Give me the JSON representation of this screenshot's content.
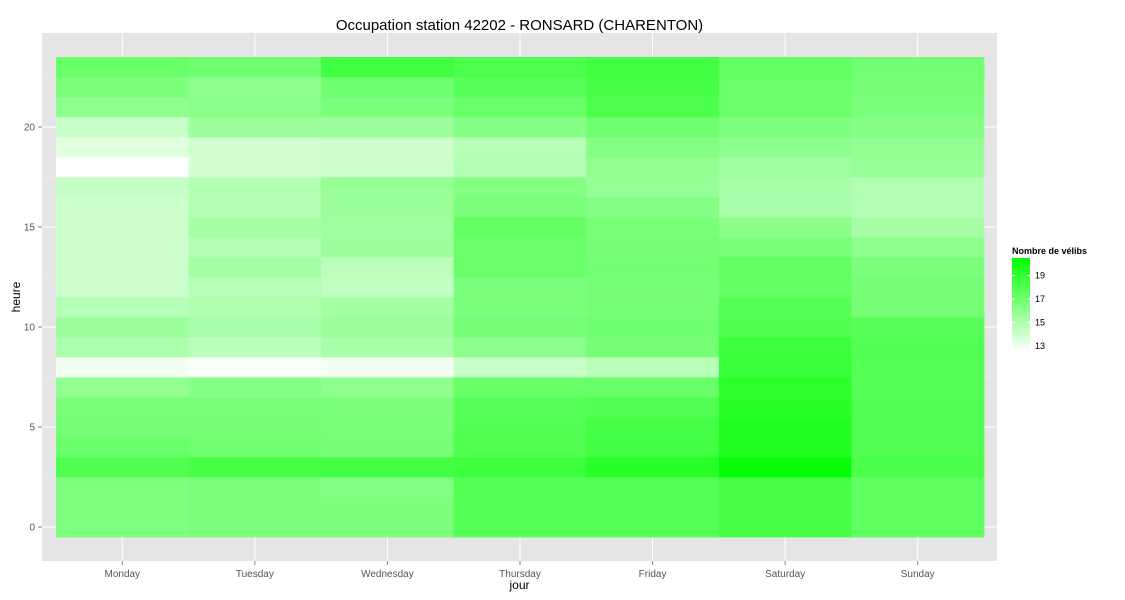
{
  "chart_data": {
    "type": "heatmap",
    "title": "Occupation station 42202 - RONSARD (CHARENTON)",
    "xlabel": "jour",
    "ylabel": "heure",
    "categories": [
      "Monday",
      "Tuesday",
      "Wednesday",
      "Thursday",
      "Friday",
      "Saturday",
      "Sunday"
    ],
    "hours": [
      0,
      1,
      2,
      3,
      4,
      5,
      6,
      7,
      8,
      9,
      10,
      11,
      12,
      13,
      14,
      15,
      16,
      17,
      18,
      19,
      20,
      21,
      22,
      23
    ],
    "y_ticks": [
      0,
      5,
      10,
      15,
      20
    ],
    "ylim": [
      -0.5,
      23.5
    ],
    "grid": true,
    "legend": {
      "title": "Nombre de vélibs",
      "labels": [
        19,
        17,
        15,
        13
      ],
      "min": 12.5,
      "max": 20.5,
      "placement": "right",
      "color_low": "#ffffff",
      "color_high": "#00ff00"
    },
    "colors": {
      "panel_bg": "#e5e5e5",
      "grid": "#ffffff"
    },
    "values": [
      [
        16.5,
        16.6,
        16.6,
        17.8,
        17.8,
        18.3,
        17.5
      ],
      [
        16.5,
        16.6,
        16.6,
        17.8,
        17.8,
        18.3,
        17.5
      ],
      [
        16.5,
        16.6,
        16.4,
        17.8,
        17.8,
        18.3,
        17.5
      ],
      [
        18.0,
        18.3,
        18.4,
        18.6,
        19.2,
        20.3,
        18.1
      ],
      [
        17.1,
        17.0,
        16.8,
        18.0,
        18.4,
        19.5,
        17.9
      ],
      [
        16.8,
        16.8,
        16.7,
        17.9,
        18.3,
        19.5,
        17.9
      ],
      [
        16.7,
        16.7,
        16.6,
        17.7,
        17.9,
        19.2,
        17.9
      ],
      [
        15.9,
        16.3,
        16.0,
        17.2,
        17.2,
        19.1,
        17.8
      ],
      [
        12.9,
        12.7,
        12.9,
        14.2,
        14.7,
        18.7,
        17.8
      ],
      [
        15.1,
        14.6,
        15.2,
        16.1,
        16.8,
        18.6,
        17.9
      ],
      [
        15.6,
        15.2,
        15.6,
        16.8,
        17.0,
        18.0,
        17.7
      ],
      [
        14.8,
        15.0,
        15.4,
        16.6,
        16.8,
        17.8,
        16.8
      ],
      [
        14.1,
        14.8,
        14.5,
        16.6,
        16.8,
        17.3,
        16.8
      ],
      [
        14.1,
        15.4,
        14.6,
        17.1,
        16.9,
        17.4,
        16.6
      ],
      [
        14.1,
        14.9,
        15.6,
        17.1,
        16.8,
        16.7,
        16.1
      ],
      [
        14.1,
        15.3,
        15.5,
        17.4,
        16.7,
        16.2,
        15.3
      ],
      [
        14.1,
        14.9,
        15.6,
        16.6,
        16.4,
        15.2,
        14.9
      ],
      [
        14.3,
        14.9,
        15.8,
        16.4,
        15.8,
        15.2,
        14.9
      ],
      [
        12.5,
        13.9,
        14.1,
        14.9,
        15.9,
        15.5,
        15.8
      ],
      [
        13.5,
        13.9,
        14.1,
        14.8,
        16.4,
        16.1,
        15.9
      ],
      [
        14.2,
        15.6,
        15.6,
        16.3,
        17.0,
        16.5,
        16.3
      ],
      [
        16.0,
        16.2,
        16.6,
        17.2,
        18.1,
        17.1,
        16.6
      ],
      [
        16.6,
        16.1,
        17.0,
        17.7,
        18.3,
        17.2,
        16.8
      ],
      [
        17.2,
        17.0,
        18.5,
        18.1,
        18.4,
        17.4,
        16.9
      ]
    ]
  }
}
